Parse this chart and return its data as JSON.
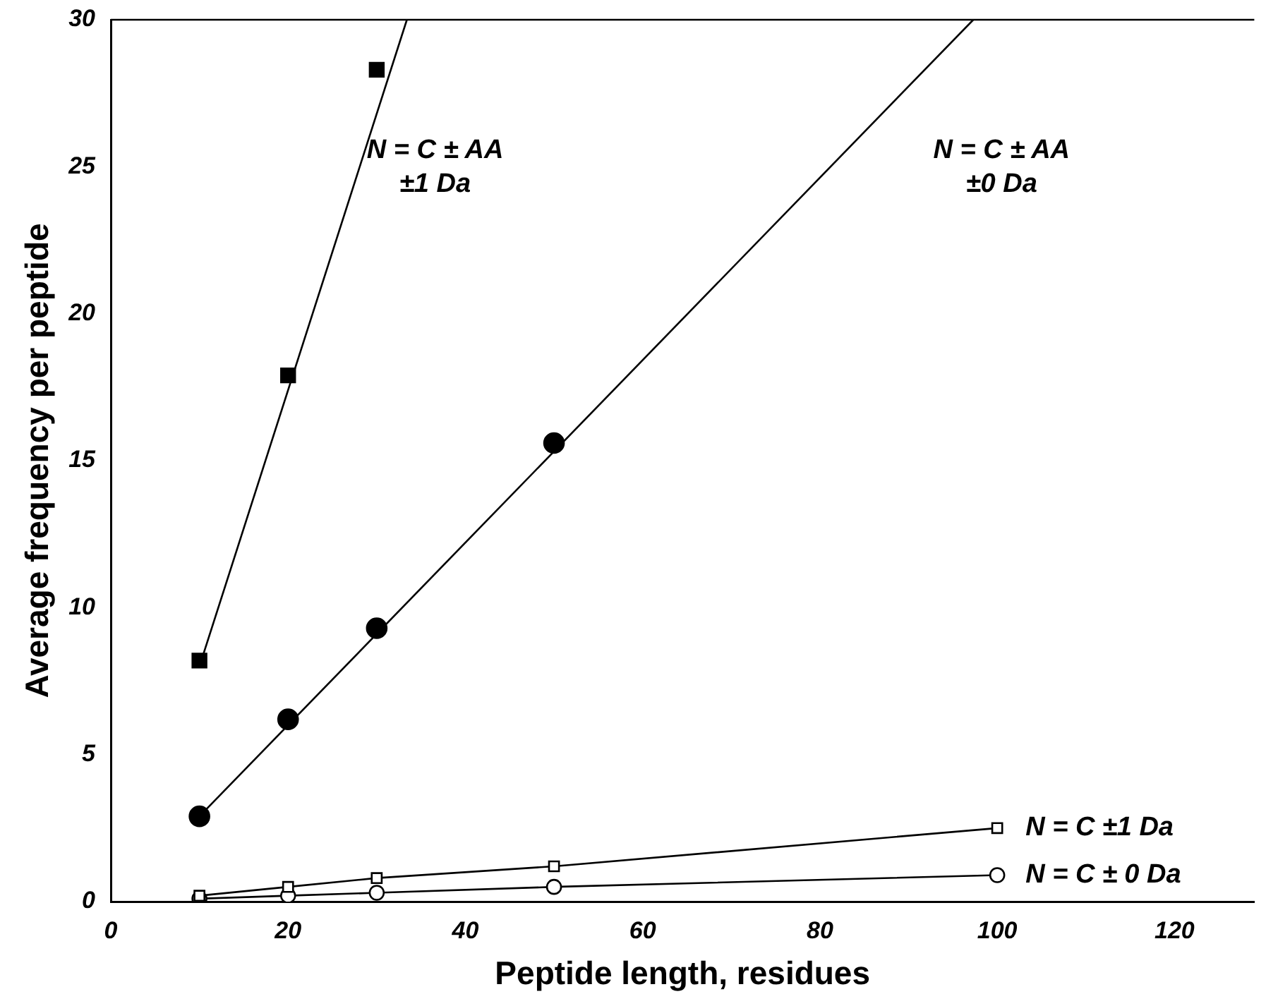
{
  "chart_data": {
    "type": "line",
    "xlabel": "Peptide length, residues",
    "ylabel": "Average frequency per peptide",
    "xlim": [
      0,
      129
    ],
    "ylim": [
      0,
      30
    ],
    "xticks": [
      0,
      20,
      40,
      60,
      80,
      100,
      120
    ],
    "yticks": [
      0,
      5,
      10,
      15,
      20,
      25,
      30
    ],
    "grid": false,
    "legend": false,
    "series": [
      {
        "type": "scatter",
        "marker": "square",
        "color": "#000000",
        "x": [
          10,
          20,
          30
        ],
        "values": [
          8.2,
          17.9,
          28.3
        ]
      },
      {
        "name": "N = C ± AA\n±1 Da",
        "marker": "none",
        "color": "#000000",
        "x": [
          10,
          33.4
        ],
        "values": [
          8.0,
          30
        ]
      },
      {
        "type": "scatter",
        "marker": "circle",
        "color": "#000000",
        "x": [
          10,
          20,
          30,
          50
        ],
        "values": [
          2.9,
          6.2,
          9.3,
          15.6
        ]
      },
      {
        "name": "N = C ± AA\n±0 Da",
        "marker": "none",
        "color": "#000000",
        "x": [
          10,
          97.3
        ],
        "values": [
          2.9,
          30
        ]
      },
      {
        "name": "N = C ±1 Da",
        "marker": "square",
        "color": "#000000",
        "x": [
          10,
          20,
          30,
          50,
          100
        ],
        "values": [
          0.2,
          0.5,
          0.8,
          1.2,
          2.5
        ]
      },
      {
        "name": "N = C ± 0 Da",
        "marker": "circle",
        "color": "#000000",
        "x": [
          10,
          20,
          30,
          50,
          100
        ],
        "values": [
          0.1,
          0.2,
          0.3,
          0.5,
          0.9
        ]
      }
    ]
  }
}
